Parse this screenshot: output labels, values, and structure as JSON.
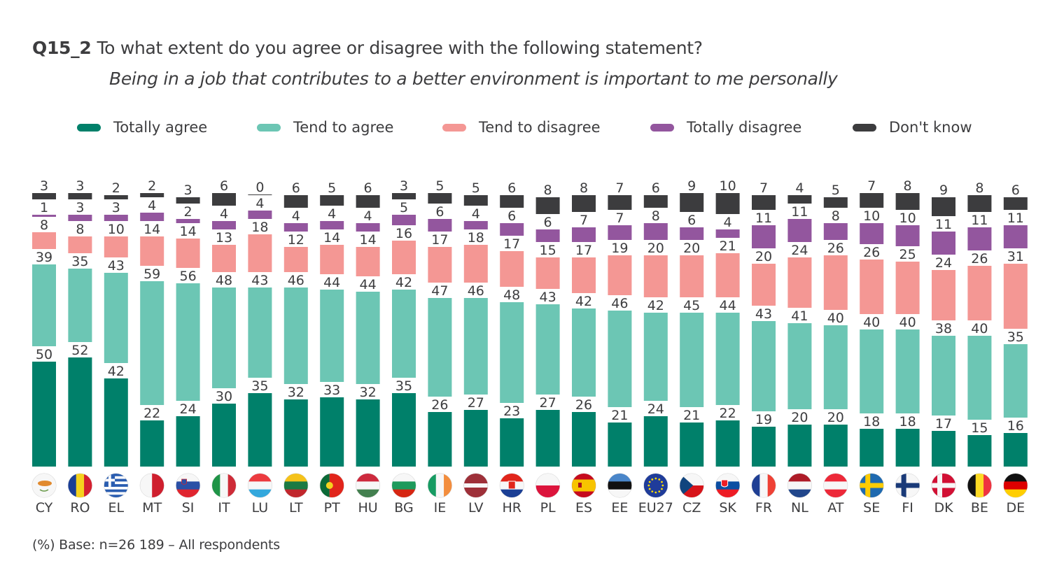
{
  "header": {
    "question_id": "Q15_2",
    "question": "To what extent do you agree or disagree with the following statement?",
    "statement": "Being in a job that contributes to a better environment is important to me personally"
  },
  "legend": [
    {
      "label": "Totally agree",
      "color": "#00806a"
    },
    {
      "label": "Tend to agree",
      "color": "#6cc6b4"
    },
    {
      "label": "Tend to disagree",
      "color": "#f49794"
    },
    {
      "label": "Totally disagree",
      "color": "#93569e"
    },
    {
      "label": "Don't know",
      "color": "#3c3c3e"
    }
  ],
  "footnote": "(%) Base: n=26 189 – All respondents",
  "chart_data": {
    "type": "bar",
    "stacked": true,
    "title": "Q15_2 To what extent do you agree or disagree with the following statement?",
    "subtitle": "Being in a job that contributes to a better environment is important to me personally",
    "xlabel": "",
    "ylabel": "%",
    "ylim": [
      0,
      100
    ],
    "grid": false,
    "legend_position": "top",
    "categories": [
      "CY",
      "RO",
      "EL",
      "MT",
      "SI",
      "IT",
      "LU",
      "LT",
      "PT",
      "HU",
      "BG",
      "IE",
      "LV",
      "HR",
      "PL",
      "ES",
      "EE",
      "EU27",
      "CZ",
      "SK",
      "FR",
      "NL",
      "AT",
      "SE",
      "FI",
      "DK",
      "BE",
      "DE"
    ],
    "category_icons": [
      "flag-cyprus",
      "flag-romania",
      "flag-greece",
      "flag-malta",
      "flag-slovenia",
      "flag-italy",
      "flag-luxembourg",
      "flag-lithuania",
      "flag-portugal",
      "flag-hungary",
      "flag-bulgaria",
      "flag-ireland",
      "flag-latvia",
      "flag-croatia",
      "flag-poland",
      "flag-spain",
      "flag-estonia",
      "flag-eu",
      "flag-czechia",
      "flag-slovakia",
      "flag-france",
      "flag-netherlands",
      "flag-austria",
      "flag-sweden",
      "flag-finland",
      "flag-denmark",
      "flag-belgium",
      "flag-germany"
    ],
    "series": [
      {
        "name": "Totally agree",
        "color": "#00806a",
        "values": [
          50,
          52,
          42,
          22,
          24,
          30,
          35,
          32,
          33,
          32,
          35,
          26,
          27,
          23,
          27,
          26,
          21,
          24,
          21,
          22,
          19,
          20,
          20,
          18,
          18,
          17,
          15,
          16
        ]
      },
      {
        "name": "Tend to agree",
        "color": "#6cc6b4",
        "values": [
          39,
          35,
          43,
          59,
          56,
          48,
          43,
          46,
          44,
          44,
          42,
          47,
          46,
          48,
          43,
          42,
          46,
          42,
          45,
          44,
          43,
          41,
          40,
          40,
          40,
          38,
          40,
          35
        ]
      },
      {
        "name": "Tend to disagree",
        "color": "#f49794",
        "values": [
          8,
          8,
          10,
          14,
          14,
          13,
          18,
          12,
          14,
          14,
          16,
          17,
          18,
          17,
          15,
          17,
          19,
          20,
          20,
          21,
          20,
          24,
          26,
          26,
          25,
          24,
          26,
          31
        ]
      },
      {
        "name": "Totally disagree",
        "color": "#93569e",
        "values": [
          1,
          3,
          3,
          4,
          2,
          4,
          4,
          4,
          4,
          4,
          5,
          6,
          4,
          6,
          6,
          7,
          7,
          8,
          6,
          4,
          11,
          11,
          8,
          10,
          10,
          11,
          11,
          11
        ]
      },
      {
        "name": "Don't know",
        "color": "#3c3c3e",
        "values": [
          3,
          3,
          2,
          2,
          3,
          6,
          0,
          6,
          5,
          6,
          3,
          5,
          5,
          6,
          8,
          8,
          7,
          6,
          9,
          10,
          7,
          4,
          5,
          7,
          8,
          9,
          8,
          6
        ]
      }
    ]
  }
}
